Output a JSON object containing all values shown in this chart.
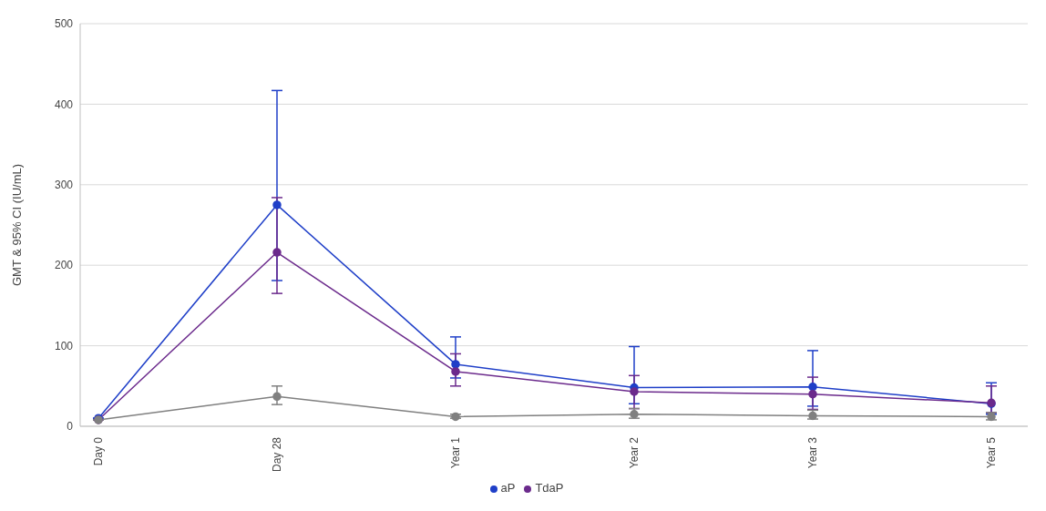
{
  "chart_data": {
    "type": "line",
    "ylabel": "GMT & 95% CI (IU/mL)",
    "categories": [
      "Day 0",
      "Day 28",
      "Year 1",
      "Year 2",
      "Year 3",
      "Year 5"
    ],
    "ylim": [
      0,
      500
    ],
    "yticks": [
      0,
      100,
      200,
      300,
      400,
      500
    ],
    "grid": "y",
    "legend": "bottom",
    "marker": "circle",
    "line_style": "solid",
    "series": [
      {
        "name": "aP",
        "color": "#1f3fc8",
        "values": [
          10,
          275,
          77,
          48,
          49,
          28
        ],
        "errors": [
          null,
          [
            181,
            417
          ],
          [
            60,
            111
          ],
          [
            28,
            99
          ],
          [
            25,
            94
          ],
          [
            15,
            54
          ]
        ]
      },
      {
        "name": "TdaP",
        "color": "#6b2a8c",
        "values": [
          8,
          216,
          68,
          43,
          40,
          29
        ],
        "errors": [
          null,
          [
            165,
            284
          ],
          [
            50,
            90
          ],
          [
            22,
            63
          ],
          [
            21,
            61
          ],
          [
            17,
            50
          ]
        ]
      },
      {
        "color": "#808080",
        "values": [
          8,
          37,
          12,
          15,
          13,
          12
        ],
        "errors": [
          null,
          [
            27,
            50
          ],
          [
            10,
            15
          ],
          [
            10,
            22
          ],
          [
            9,
            20
          ],
          [
            8,
            17
          ]
        ]
      }
    ]
  }
}
